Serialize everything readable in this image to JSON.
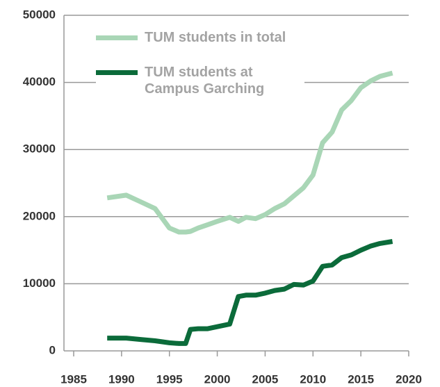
{
  "chart_data": {
    "type": "line",
    "x": [
      1988.5,
      1990.5,
      1992,
      1993.5,
      1995,
      1996,
      1996.7,
      1997.2,
      1998,
      1999,
      2000,
      2001.3,
      2002.2,
      2003,
      2004,
      2005,
      2006,
      2007,
      2008,
      2009,
      2010,
      2011,
      2012,
      2013,
      2014,
      2015,
      2016,
      2017,
      2018.3
    ],
    "series": [
      {
        "name": "TUM students in total",
        "color": "#a9d6b6",
        "values": [
          22800,
          23200,
          22200,
          21200,
          18300,
          17700,
          17700,
          17800,
          18300,
          18800,
          19300,
          19900,
          19300,
          19900,
          19700,
          20300,
          21200,
          21900,
          23100,
          24300,
          26200,
          31000,
          32600,
          35900,
          37300,
          39200,
          40200,
          40900,
          41400
        ]
      },
      {
        "name": "TUM students at Campus Garching",
        "color": "#0b6b3a",
        "values": [
          1900,
          1900,
          1700,
          1500,
          1200,
          1100,
          1100,
          3200,
          3300,
          3300,
          3600,
          4000,
          8100,
          8300,
          8300,
          8600,
          9000,
          9200,
          9900,
          9800,
          10400,
          12600,
          12800,
          13900,
          14300,
          15000,
          15600,
          16000,
          16300
        ]
      }
    ],
    "xlim": [
      1985,
      2020
    ],
    "xticks": [
      1985,
      1990,
      1995,
      2000,
      2005,
      2010,
      2015,
      2020
    ],
    "ylim": [
      0,
      50000
    ],
    "yticks": [
      0,
      10000,
      20000,
      30000,
      40000,
      50000
    ],
    "grid": true,
    "legend": "upper left"
  }
}
